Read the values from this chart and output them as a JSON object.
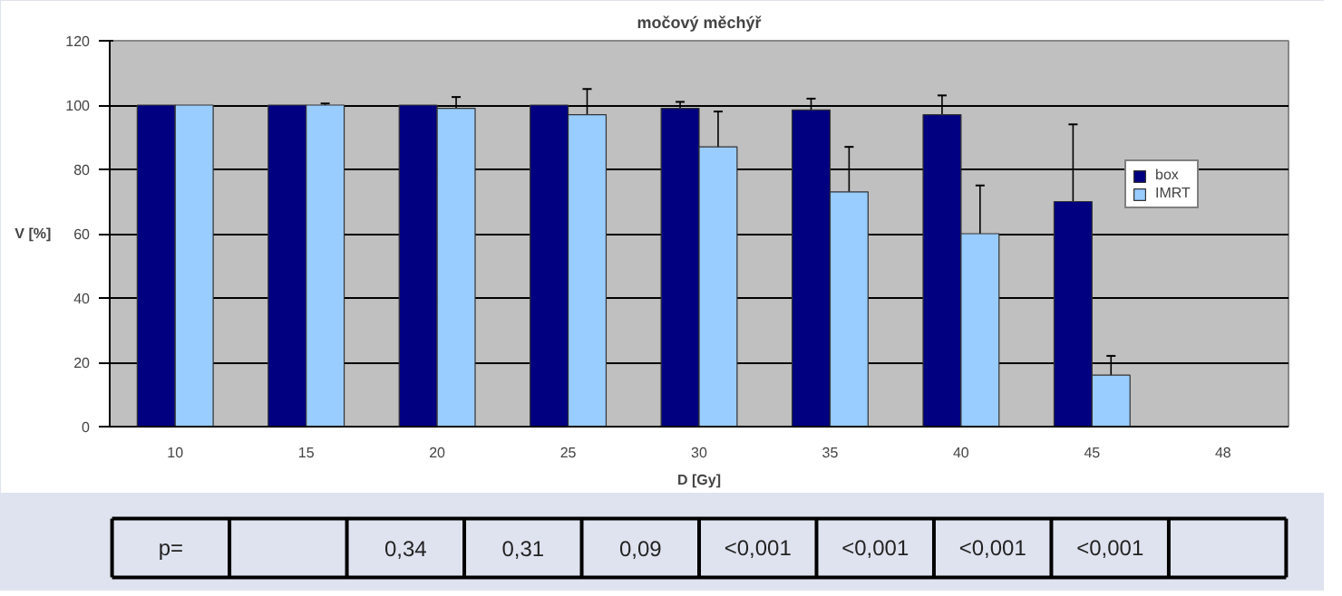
{
  "chart_data": {
    "type": "bar",
    "title": "močový měchýř",
    "xlabel": "D [Gy]",
    "ylabel": "V [%]",
    "categories": [
      "10",
      "15",
      "20",
      "25",
      "30",
      "35",
      "40",
      "45",
      "48"
    ],
    "series": [
      {
        "name": "box",
        "color": "#000080",
        "values": [
          100,
          100,
          100,
          100,
          99,
          98.5,
          97,
          70,
          null
        ],
        "errors": [
          null,
          null,
          null,
          null,
          2,
          3.5,
          6,
          24,
          null
        ]
      },
      {
        "name": "IMRT",
        "color": "#99ccff",
        "values": [
          100,
          100,
          99,
          97,
          87,
          73,
          60,
          16,
          null
        ],
        "errors": [
          null,
          0.5,
          3.5,
          8,
          11,
          14,
          15,
          6,
          null
        ]
      }
    ],
    "ylim": [
      0,
      120
    ],
    "yticks": [
      0,
      20,
      40,
      60,
      80,
      100,
      120
    ],
    "grid": "y",
    "legend": "right",
    "annotations": [
      "p=",
      "0,34",
      "0,31",
      "0,09",
      "<0,001",
      "<0,001",
      "<0,001",
      "<0,001"
    ]
  }
}
